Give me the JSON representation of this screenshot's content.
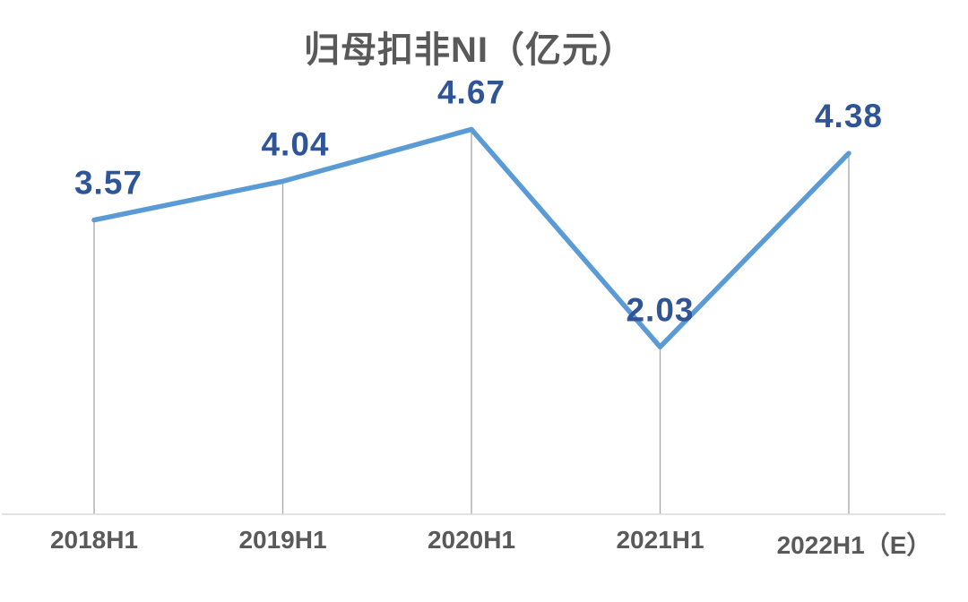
{
  "chart_data": {
    "type": "line",
    "title": "归母扣非NI（亿元）",
    "categories": [
      "2018H1",
      "2019H1",
      "2020H1",
      "2021H1",
      "2022H1（E）"
    ],
    "values": [
      3.57,
      4.04,
      4.67,
      2.03,
      4.38
    ],
    "value_labels": [
      "3.57",
      "4.04",
      "4.67",
      "2.03",
      "4.38"
    ],
    "xlabel": "",
    "ylabel": "",
    "ylim": [
      0,
      6.24
    ],
    "grid": false,
    "legend": "none",
    "marker": "none",
    "data_label_position": "above",
    "drop_lines": true,
    "colors": {
      "line": "#5B9BD5",
      "data_label": "#2F5597",
      "title": "#595959",
      "axis_label": "#595959",
      "drop_line": "#A6A6A6",
      "axis_line": "#D9D9D9",
      "background": "#FFFFFF"
    },
    "layout_hints": {
      "label_dx": [
        16,
        14,
        0,
        0,
        0
      ],
      "label_gap_above_point": 42,
      "last_xlabel_offset": [
        6,
        6
      ]
    }
  }
}
